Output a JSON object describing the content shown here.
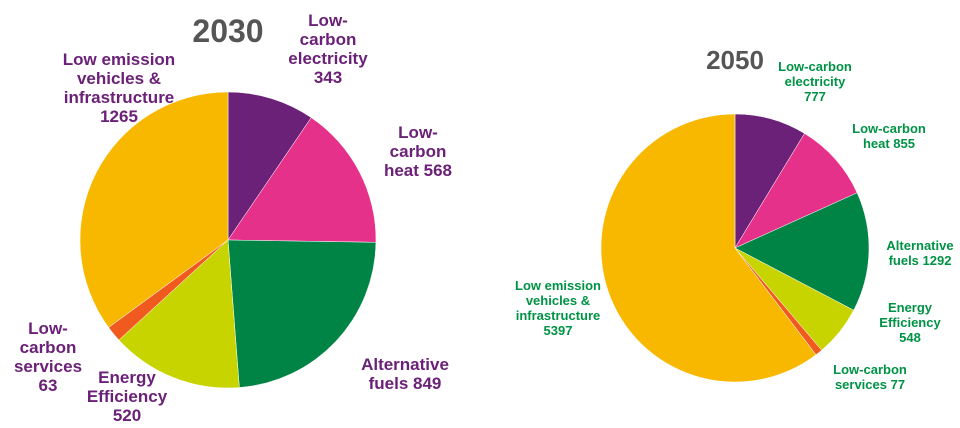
{
  "chart_data": [
    {
      "type": "pie",
      "title": "2030",
      "label_color": "#6B2177",
      "slices": [
        {
          "label": "Low-carbon electricity",
          "value": 343,
          "color": "#6B2177",
          "text_lines": [
            "Low-",
            "carbon",
            "electricity",
            "343"
          ]
        },
        {
          "label": "Low-carbon heat",
          "value": 568,
          "color": "#E6318A",
          "text_lines": [
            "Low-",
            "carbon",
            "heat  568"
          ]
        },
        {
          "label": "Alternative fuels",
          "value": 849,
          "color": "#008446",
          "text_lines": [
            "Alternative",
            "fuels  849"
          ]
        },
        {
          "label": "Energy Efficiency",
          "value": 520,
          "color": "#C8D400",
          "text_lines": [
            "Energy",
            "Efficiency",
            "520"
          ]
        },
        {
          "label": "Low-carbon services",
          "value": 63,
          "color": "#F05A1E",
          "text_lines": [
            "Low-",
            "carbon",
            "services",
            "63"
          ]
        },
        {
          "label": "Low emission vehicles & infrastructure",
          "value": 1265,
          "color": "#F9B800",
          "text_lines": [
            "Low emission",
            "vehicles &",
            "infrastructure",
            "1265"
          ]
        }
      ]
    },
    {
      "type": "pie",
      "title": "2050",
      "label_color": "#009245",
      "slices": [
        {
          "label": "Low-carbon electricity",
          "value": 777,
          "color": "#6B2177",
          "text_lines": [
            "Low-carbon",
            "electricity",
            "777"
          ]
        },
        {
          "label": "Low-carbon heat",
          "value": 855,
          "color": "#E6318A",
          "text_lines": [
            "Low-carbon",
            "heat  855"
          ]
        },
        {
          "label": "Alternative fuels",
          "value": 1292,
          "color": "#008446",
          "text_lines": [
            "Alternative",
            "fuels  1292"
          ]
        },
        {
          "label": "Energy Efficiency",
          "value": 548,
          "color": "#C8D400",
          "text_lines": [
            "Energy",
            "Efficiency",
            "548"
          ]
        },
        {
          "label": "Low-carbon services",
          "value": 77,
          "color": "#F05A1E",
          "text_lines": [
            "Low-carbon",
            "services  77"
          ]
        },
        {
          "label": "Low emission vehicles & infrastructure",
          "value": 5397,
          "color": "#F9B800",
          "text_lines": [
            "Low emission",
            "vehicles &",
            "infrastructure",
            "5397"
          ]
        }
      ]
    }
  ]
}
